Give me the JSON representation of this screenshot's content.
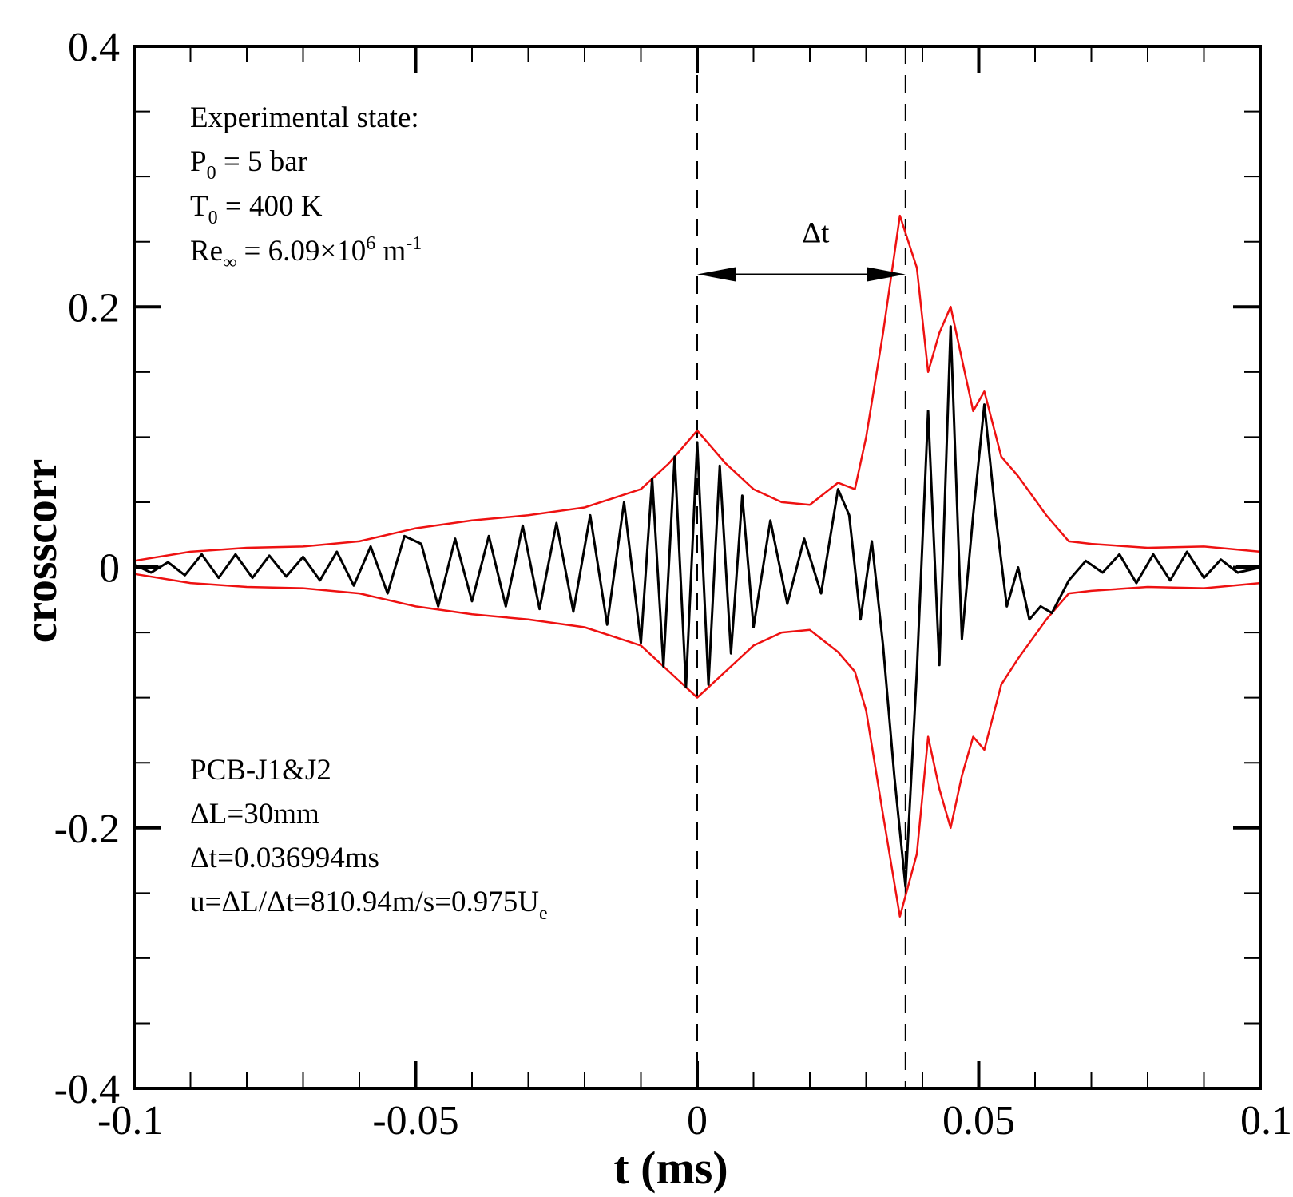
{
  "chart_data": {
    "type": "line",
    "xlabel": "t (ms)",
    "ylabel": "crosscorr",
    "xlim": [
      -0.1,
      0.1
    ],
    "ylim": [
      -0.4,
      0.4
    ],
    "x_ticks": [
      -0.1,
      -0.05,
      0,
      0.05,
      0.1
    ],
    "x_tick_labels": [
      "-0.1",
      "-0.05",
      "0",
      "0.05",
      "0.1"
    ],
    "y_ticks": [
      -0.4,
      -0.2,
      0,
      0.2,
      0.4
    ],
    "y_tick_labels": [
      "-0.4",
      "-0.2",
      "0",
      "0.2",
      "0.4"
    ],
    "x_minor_step": 0.01,
    "y_minor_step": 0.05,
    "grid": false,
    "reference_lines": [
      0,
      0.036994
    ],
    "delta_arrow": {
      "from": 0,
      "to": 0.036994,
      "y": 0.225,
      "label": "Δt"
    },
    "colors": {
      "crosscorr": "#000000",
      "envelope": "#ee1111",
      "axes": "#000000",
      "reference": "#000000"
    },
    "series": [
      {
        "name": "crosscorr",
        "color": "#000000",
        "points": [
          [
            -0.1,
            0.002
          ],
          [
            -0.097,
            -0.004
          ],
          [
            -0.094,
            0.004
          ],
          [
            -0.091,
            -0.006
          ],
          [
            -0.088,
            0.01
          ],
          [
            -0.085,
            -0.008
          ],
          [
            -0.082,
            0.01
          ],
          [
            -0.079,
            -0.008
          ],
          [
            -0.076,
            0.009
          ],
          [
            -0.073,
            -0.007
          ],
          [
            -0.07,
            0.008
          ],
          [
            -0.067,
            -0.01
          ],
          [
            -0.064,
            0.012
          ],
          [
            -0.061,
            -0.014
          ],
          [
            -0.058,
            0.016
          ],
          [
            -0.055,
            -0.02
          ],
          [
            -0.052,
            0.024
          ],
          [
            -0.049,
            0.018
          ],
          [
            -0.046,
            -0.03
          ],
          [
            -0.043,
            0.022
          ],
          [
            -0.04,
            -0.026
          ],
          [
            -0.037,
            0.024
          ],
          [
            -0.034,
            -0.03
          ],
          [
            -0.031,
            0.032
          ],
          [
            -0.028,
            -0.032
          ],
          [
            -0.025,
            0.034
          ],
          [
            -0.022,
            -0.034
          ],
          [
            -0.019,
            0.04
          ],
          [
            -0.016,
            -0.044
          ],
          [
            -0.013,
            0.05
          ],
          [
            -0.01,
            -0.058
          ],
          [
            -0.008,
            0.068
          ],
          [
            -0.006,
            -0.076
          ],
          [
            -0.004,
            0.085
          ],
          [
            -0.002,
            -0.092
          ],
          [
            0.0,
            0.096
          ],
          [
            0.002,
            -0.09
          ],
          [
            0.004,
            0.078
          ],
          [
            0.006,
            -0.066
          ],
          [
            0.008,
            0.055
          ],
          [
            0.01,
            -0.046
          ],
          [
            0.013,
            0.036
          ],
          [
            0.016,
            -0.028
          ],
          [
            0.019,
            0.022
          ],
          [
            0.022,
            -0.02
          ],
          [
            0.025,
            0.06
          ],
          [
            0.027,
            0.04
          ],
          [
            0.029,
            -0.04
          ],
          [
            0.031,
            0.02
          ],
          [
            0.033,
            -0.06
          ],
          [
            0.035,
            -0.16
          ],
          [
            0.037,
            -0.245
          ],
          [
            0.039,
            -0.08
          ],
          [
            0.041,
            0.12
          ],
          [
            0.043,
            -0.075
          ],
          [
            0.045,
            0.185
          ],
          [
            0.047,
            -0.055
          ],
          [
            0.049,
            0.04
          ],
          [
            0.051,
            0.125
          ],
          [
            0.053,
            0.04
          ],
          [
            0.055,
            -0.03
          ],
          [
            0.057,
            0.0
          ],
          [
            0.059,
            -0.04
          ],
          [
            0.061,
            -0.03
          ],
          [
            0.063,
            -0.035
          ],
          [
            0.066,
            -0.01
          ],
          [
            0.069,
            0.005
          ],
          [
            0.072,
            -0.004
          ],
          [
            0.075,
            0.01
          ],
          [
            0.078,
            -0.012
          ],
          [
            0.081,
            0.01
          ],
          [
            0.084,
            -0.01
          ],
          [
            0.087,
            0.012
          ],
          [
            0.09,
            -0.008
          ],
          [
            0.093,
            0.006
          ],
          [
            0.096,
            -0.004
          ],
          [
            0.1,
            0.0
          ]
        ]
      },
      {
        "name": "envelope-upper",
        "color": "#ee1111",
        "points": [
          [
            -0.1,
            0.005
          ],
          [
            -0.09,
            0.012
          ],
          [
            -0.08,
            0.015
          ],
          [
            -0.07,
            0.016
          ],
          [
            -0.06,
            0.02
          ],
          [
            -0.05,
            0.03
          ],
          [
            -0.04,
            0.036
          ],
          [
            -0.03,
            0.04
          ],
          [
            -0.02,
            0.046
          ],
          [
            -0.01,
            0.06
          ],
          [
            -0.005,
            0.08
          ],
          [
            0.0,
            0.105
          ],
          [
            0.005,
            0.08
          ],
          [
            0.01,
            0.06
          ],
          [
            0.015,
            0.05
          ],
          [
            0.02,
            0.048
          ],
          [
            0.025,
            0.065
          ],
          [
            0.028,
            0.06
          ],
          [
            0.03,
            0.1
          ],
          [
            0.033,
            0.18
          ],
          [
            0.036,
            0.27
          ],
          [
            0.039,
            0.23
          ],
          [
            0.041,
            0.15
          ],
          [
            0.043,
            0.18
          ],
          [
            0.045,
            0.2
          ],
          [
            0.047,
            0.16
          ],
          [
            0.049,
            0.12
          ],
          [
            0.051,
            0.135
          ],
          [
            0.054,
            0.085
          ],
          [
            0.057,
            0.07
          ],
          [
            0.062,
            0.04
          ],
          [
            0.066,
            0.02
          ],
          [
            0.07,
            0.018
          ],
          [
            0.08,
            0.015
          ],
          [
            0.09,
            0.016
          ],
          [
            0.1,
            0.012
          ]
        ]
      },
      {
        "name": "envelope-lower",
        "color": "#ee1111",
        "points": [
          [
            -0.1,
            -0.005
          ],
          [
            -0.09,
            -0.012
          ],
          [
            -0.08,
            -0.015
          ],
          [
            -0.07,
            -0.016
          ],
          [
            -0.06,
            -0.02
          ],
          [
            -0.05,
            -0.03
          ],
          [
            -0.04,
            -0.036
          ],
          [
            -0.03,
            -0.04
          ],
          [
            -0.02,
            -0.046
          ],
          [
            -0.01,
            -0.06
          ],
          [
            -0.005,
            -0.08
          ],
          [
            0.0,
            -0.1
          ],
          [
            0.005,
            -0.08
          ],
          [
            0.01,
            -0.06
          ],
          [
            0.015,
            -0.05
          ],
          [
            0.02,
            -0.048
          ],
          [
            0.025,
            -0.065
          ],
          [
            0.028,
            -0.08
          ],
          [
            0.03,
            -0.11
          ],
          [
            0.033,
            -0.19
          ],
          [
            0.036,
            -0.268
          ],
          [
            0.039,
            -0.22
          ],
          [
            0.041,
            -0.13
          ],
          [
            0.043,
            -0.17
          ],
          [
            0.045,
            -0.2
          ],
          [
            0.047,
            -0.16
          ],
          [
            0.049,
            -0.13
          ],
          [
            0.051,
            -0.14
          ],
          [
            0.054,
            -0.09
          ],
          [
            0.057,
            -0.07
          ],
          [
            0.062,
            -0.04
          ],
          [
            0.066,
            -0.02
          ],
          [
            0.07,
            -0.018
          ],
          [
            0.08,
            -0.015
          ],
          [
            0.09,
            -0.016
          ],
          [
            0.1,
            -0.012
          ]
        ]
      }
    ]
  },
  "annotations": {
    "state_title": "Experimental state:",
    "p0_base": "P",
    "p0_sub": "0",
    "p0_rest": " = 5 bar",
    "t0_base": "T",
    "t0_sub": "0",
    "t0_rest": " = 400 K",
    "re_base": "Re",
    "re_sub": "∞",
    "re_mid": " = 6.09×10",
    "re_sup": "6",
    "re_unit": " m",
    "re_unit_sup": "-1",
    "sensor": "PCB-J1&J2",
    "delta_l": "ΔL=30mm",
    "delta_t": "Δt=0.036994ms",
    "velocity_base": "u=ΔL/Δt=810.94m/s=0.975U",
    "velocity_sub": "e"
  }
}
